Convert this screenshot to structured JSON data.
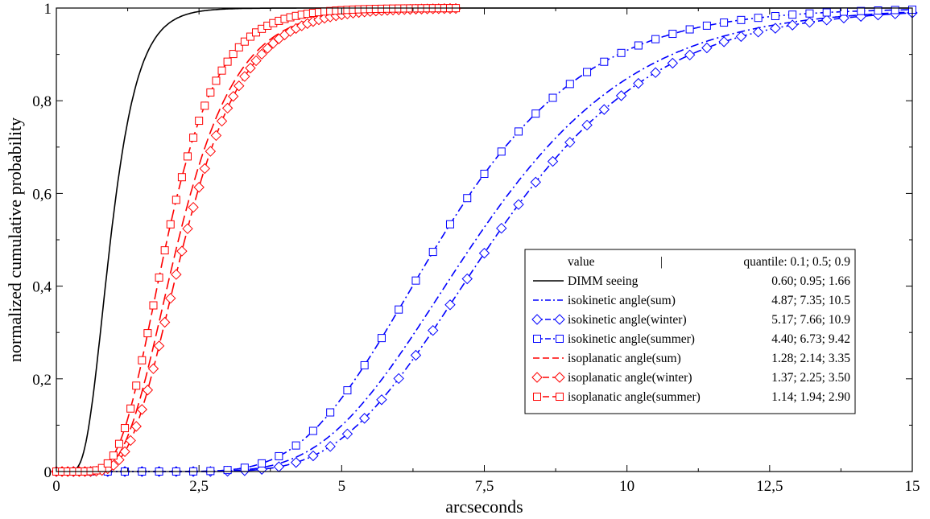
{
  "chart_data": {
    "type": "line",
    "xlabel": "arcseconds",
    "ylabel": "normalized cumulative probability",
    "xlim": [
      0,
      15
    ],
    "ylim": [
      0,
      1
    ],
    "x_ticks": [
      "0",
      "2,5",
      "5",
      "7,5",
      "10",
      "12,5",
      "15"
    ],
    "y_ticks": [
      "0",
      "0,2",
      "0,4",
      "0,6",
      "0,8",
      "1"
    ],
    "grid": false,
    "legend_position": "lower-right",
    "legend_header": {
      "name": "value",
      "separator": "|",
      "values": "quantile: 0.1; 0.5; 0.9"
    },
    "series": [
      {
        "name": "DIMM seeing",
        "quantiles": "0.60; 0.95; 1.66",
        "q10": 0.6,
        "q50": 0.95,
        "q90": 1.66,
        "x_max": 15,
        "color": "#000000",
        "dash": "solid",
        "marker": "none"
      },
      {
        "name": "isokinetic angle(sum)",
        "quantiles": "4.87; 7.35; 10.5",
        "q10": 4.87,
        "q50": 7.35,
        "q90": 10.5,
        "x_max": 15,
        "color": "#0000ff",
        "dash": "dash-dot",
        "marker": "none"
      },
      {
        "name": "isokinetic angle(winter)",
        "quantiles": "5.17; 7.66; 10.9",
        "q10": 5.17,
        "q50": 7.66,
        "q90": 10.9,
        "x_max": 15,
        "color": "#0000ff",
        "dash": "dash-dot",
        "marker": "diamond"
      },
      {
        "name": "isokinetic angle(summer)",
        "quantiles": "4.40; 6.73; 9.42",
        "q10": 4.4,
        "q50": 6.73,
        "q90": 9.42,
        "x_max": 15,
        "color": "#0000ff",
        "dash": "dash-dot",
        "marker": "square"
      },
      {
        "name": "isoplanatic angle(sum)",
        "quantiles": "1.28; 2.14; 3.35",
        "q10": 1.28,
        "q50": 2.14,
        "q90": 3.35,
        "x_max": 7,
        "color": "#ff0000",
        "dash": "dash",
        "marker": "none"
      },
      {
        "name": "isoplanatic angle(winter)",
        "quantiles": "1.37; 2.25; 3.50",
        "q10": 1.37,
        "q50": 2.25,
        "q90": 3.5,
        "x_max": 7,
        "color": "#ff0000",
        "dash": "dash",
        "marker": "diamond"
      },
      {
        "name": "isoplanatic angle(summer)",
        "quantiles": "1.14; 1.94; 2.90",
        "q10": 1.14,
        "q50": 1.94,
        "q90": 2.9,
        "x_max": 7,
        "color": "#ff0000",
        "dash": "dash",
        "marker": "square"
      }
    ]
  }
}
